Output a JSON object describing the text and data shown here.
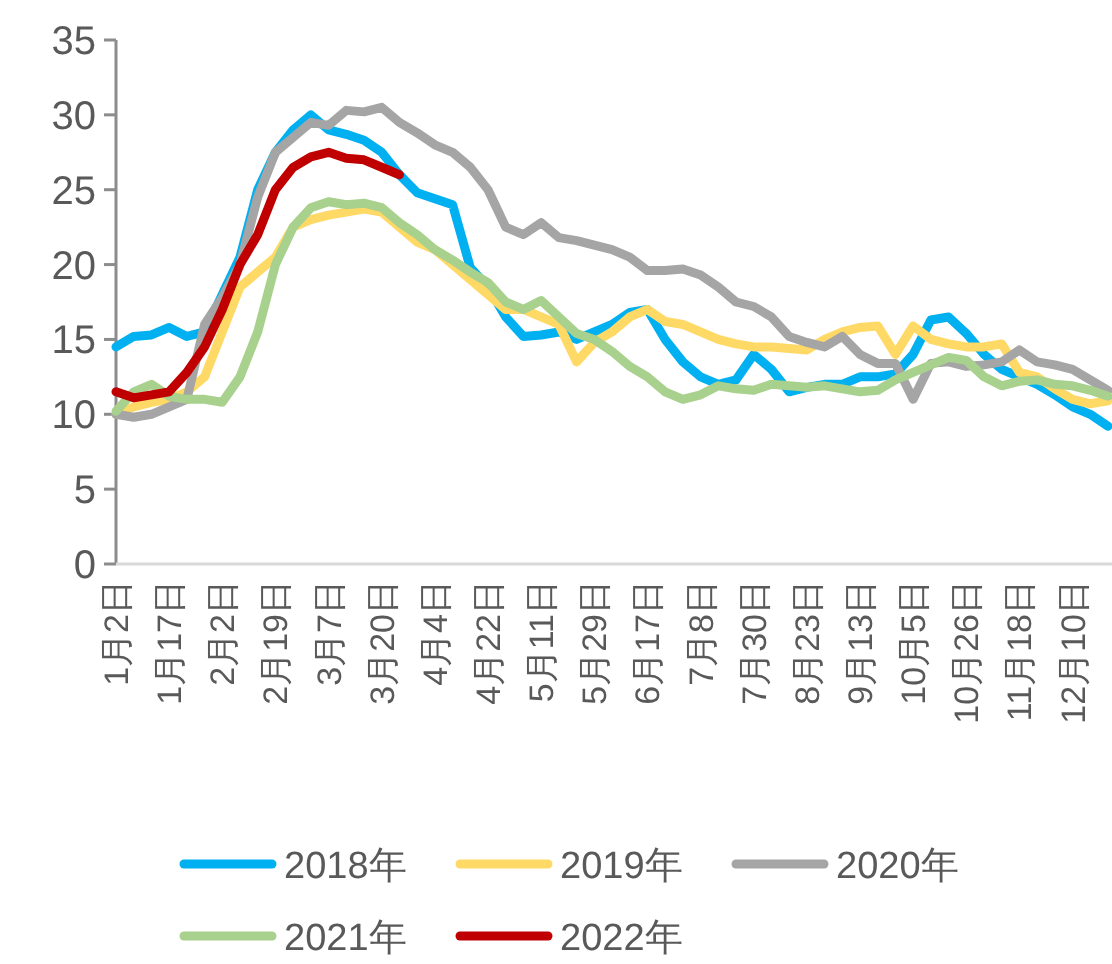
{
  "chart_data": {
    "type": "line",
    "legend": "bottom",
    "categories": [
      "1月2日",
      null,
      null,
      "1月17日",
      null,
      null,
      "2月2日",
      null,
      null,
      "2月19日",
      null,
      null,
      "3月7日",
      null,
      null,
      "3月20日",
      null,
      null,
      "4月4日",
      null,
      null,
      "4月22日",
      null,
      null,
      "5月11日",
      null,
      null,
      "5月29日",
      null,
      null,
      "6月17日",
      null,
      null,
      "7月8日",
      null,
      null,
      "7月30日",
      null,
      null,
      "8月23日",
      null,
      null,
      "9月13日",
      null,
      null,
      "10月5日",
      null,
      null,
      "10月26日",
      null,
      null,
      "11月18日",
      null,
      null,
      "12月10日",
      null,
      null
    ],
    "ylim": [
      0,
      35
    ],
    "yticks": [
      0,
      5,
      10,
      15,
      20,
      25,
      30,
      35
    ],
    "series": [
      {
        "name": "2018年",
        "color": "#00b0f0",
        "values": [
          14.5,
          15.2,
          15.3,
          15.8,
          15.2,
          15.5,
          18,
          20.5,
          25,
          27.5,
          29,
          30,
          29,
          28.7,
          28.3,
          27.5,
          26,
          24.8,
          24.4,
          24,
          19.8,
          18.5,
          16.5,
          15.2,
          15.3,
          15.5,
          15,
          15.5,
          16,
          16.8,
          17,
          15,
          13.5,
          12.5,
          12,
          12.3,
          14,
          13,
          11.5,
          11.8,
          12,
          12,
          12.5,
          12.5,
          12.7,
          14,
          16.3,
          16.5,
          15.4,
          14,
          13,
          12.5,
          12,
          11.3,
          10.5,
          10,
          9.2
        ]
      },
      {
        "name": "2019年",
        "color": "#ffd966",
        "values": [
          10,
          10.5,
          10.8,
          11,
          11.5,
          12.5,
          15.5,
          18.5,
          19.5,
          20.5,
          22.5,
          23,
          23.3,
          23.5,
          23.7,
          23.5,
          22.5,
          21.5,
          21,
          20,
          19,
          18,
          17,
          17,
          16.5,
          16,
          13.5,
          14.8,
          15.5,
          16.5,
          17,
          16.2,
          16,
          15.5,
          15,
          14.7,
          14.5,
          14.5,
          14.4,
          14.3,
          15,
          15.5,
          15.8,
          15.9,
          14,
          15.9,
          15,
          14.7,
          14.5,
          14.5,
          14.7,
          12.8,
          12.5,
          11.7,
          11,
          10.7,
          10.9
        ]
      },
      {
        "name": "2020年",
        "color": "#a5a5a5",
        "values": [
          10,
          9.8,
          10,
          10.5,
          11,
          16,
          17.8,
          20,
          24.5,
          27.5,
          28.5,
          29.5,
          29.3,
          30.3,
          30.2,
          30.5,
          29.5,
          28.8,
          28,
          27.5,
          26.5,
          25,
          22.5,
          22,
          22.8,
          21.8,
          21.6,
          21.3,
          21,
          20.5,
          19.6,
          19.6,
          19.7,
          19.3,
          18.5,
          17.5,
          17.2,
          16.5,
          15.2,
          14.8,
          14.5,
          15.2,
          14,
          13.4,
          13.4,
          11,
          13.4,
          13.5,
          13.2,
          13.3,
          13.5,
          14.3,
          13.5,
          13.3,
          13,
          12.3,
          11.6
        ]
      },
      {
        "name": "2021年",
        "color": "#a9d18e",
        "values": [
          10.2,
          11.5,
          12,
          11.2,
          11,
          11,
          10.8,
          12.5,
          15.5,
          20,
          22.5,
          23.8,
          24.2,
          24,
          24.1,
          23.8,
          22.8,
          22,
          21,
          20.3,
          19.5,
          18.8,
          17.5,
          17,
          17.6,
          16.5,
          15.4,
          15,
          14.2,
          13.2,
          12.5,
          11.5,
          11,
          11.3,
          11.9,
          11.7,
          11.6,
          12,
          11.9,
          11.8,
          11.9,
          11.7,
          11.5,
          11.6,
          12.3,
          12.8,
          13.3,
          13.8,
          13.6,
          12.5,
          11.9,
          12.2,
          12.3,
          12,
          11.9,
          11.6,
          11.2
        ]
      },
      {
        "name": "2022年",
        "color": "#c00000",
        "values": [
          11.5,
          11.1,
          11.3,
          11.5,
          12.8,
          14.5,
          17,
          20,
          22,
          25,
          26.5,
          27.2,
          27.5,
          27.1,
          27,
          26.5,
          26,
          null,
          null,
          null,
          null,
          null,
          null,
          null,
          null,
          null,
          null,
          null,
          null,
          null,
          null,
          null,
          null,
          null,
          null,
          null,
          null,
          null,
          null,
          null,
          null,
          null,
          null,
          null,
          null,
          null,
          null,
          null,
          null,
          null,
          null,
          null,
          null,
          null,
          null,
          null,
          null
        ]
      }
    ]
  }
}
